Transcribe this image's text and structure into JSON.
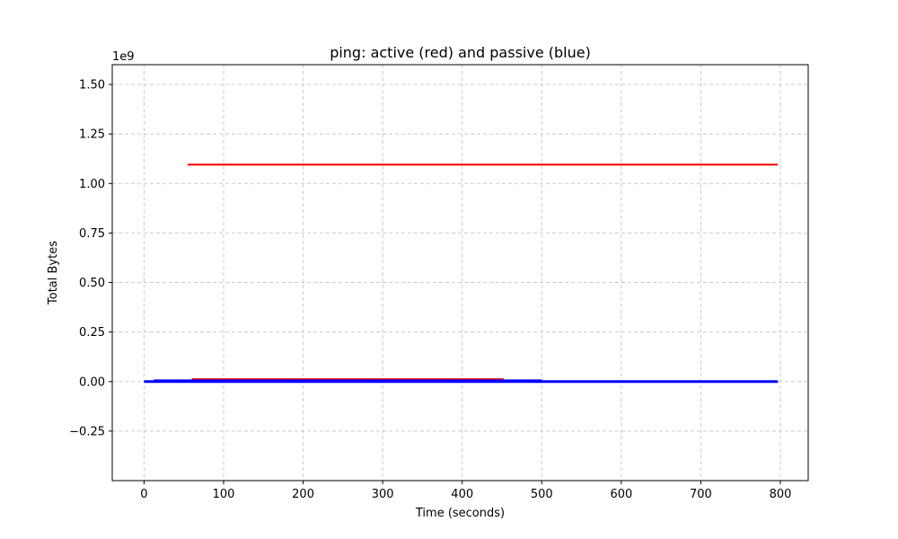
{
  "chart_data": {
    "type": "line",
    "title": "ping: active (red) and passive (blue)",
    "xlabel": "Time (seconds)",
    "ylabel": "Total Bytes",
    "y_offset_label": "1e9",
    "xlim": [
      -40,
      835
    ],
    "ylim": [
      -0.5,
      1.6
    ],
    "x_ticks": [
      0,
      100,
      200,
      300,
      400,
      500,
      600,
      700,
      800
    ],
    "x_tick_labels": [
      "0",
      "100",
      "200",
      "300",
      "400",
      "500",
      "600",
      "700",
      "800"
    ],
    "y_ticks": [
      -0.25,
      0.0,
      0.25,
      0.5,
      0.75,
      1.0,
      1.25,
      1.5
    ],
    "y_tick_labels": [
      "−0.25",
      "0.00",
      "0.25",
      "0.50",
      "0.75",
      "1.00",
      "1.25",
      "1.50"
    ],
    "grid": true,
    "series": [
      {
        "color": "#ff0000",
        "width": 2,
        "x": [
          55,
          797
        ],
        "y": [
          1.095,
          1.095
        ]
      },
      {
        "color": "#ff0000",
        "width": 2,
        "x": [
          60,
          452
        ],
        "y": [
          0.012,
          0.012
        ]
      },
      {
        "color": "#0000ff",
        "width": 2,
        "x": [
          12,
          500
        ],
        "y": [
          0.006,
          0.006
        ]
      },
      {
        "color": "#0000ff",
        "width": 3,
        "x": [
          0,
          797
        ],
        "y": [
          0.0,
          0.0
        ]
      }
    ]
  }
}
